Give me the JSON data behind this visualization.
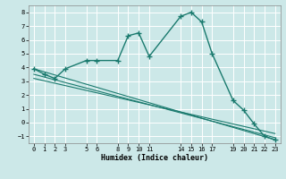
{
  "xlabel": "Humidex (Indice chaleur)",
  "bg_color": "#cce8e8",
  "grid_color": "#ffffff",
  "line_color": "#1a7a6e",
  "xlim": [
    -0.5,
    23.5
  ],
  "ylim": [
    -1.5,
    8.5
  ],
  "xticks": [
    0,
    1,
    2,
    3,
    5,
    6,
    8,
    9,
    10,
    11,
    14,
    15,
    16,
    17,
    19,
    20,
    21,
    22,
    23
  ],
  "yticks": [
    -1,
    0,
    1,
    2,
    3,
    4,
    5,
    6,
    7,
    8
  ],
  "main_line": {
    "x": [
      0,
      1,
      2,
      3,
      5,
      6,
      8,
      9,
      10,
      11,
      14,
      15,
      16,
      17,
      19,
      20,
      21,
      22,
      23
    ],
    "y": [
      3.9,
      3.5,
      3.2,
      3.9,
      4.5,
      4.5,
      4.5,
      6.3,
      6.5,
      4.8,
      7.7,
      8.0,
      7.3,
      5.0,
      1.6,
      0.9,
      -0.1,
      -1.0,
      -1.25
    ]
  },
  "straight_lines": [
    {
      "x": [
        0,
        23
      ],
      "y": [
        3.9,
        -1.25
      ]
    },
    {
      "x": [
        0,
        23
      ],
      "y": [
        3.5,
        -1.1
      ]
    },
    {
      "x": [
        0,
        23
      ],
      "y": [
        3.2,
        -0.8
      ]
    }
  ]
}
